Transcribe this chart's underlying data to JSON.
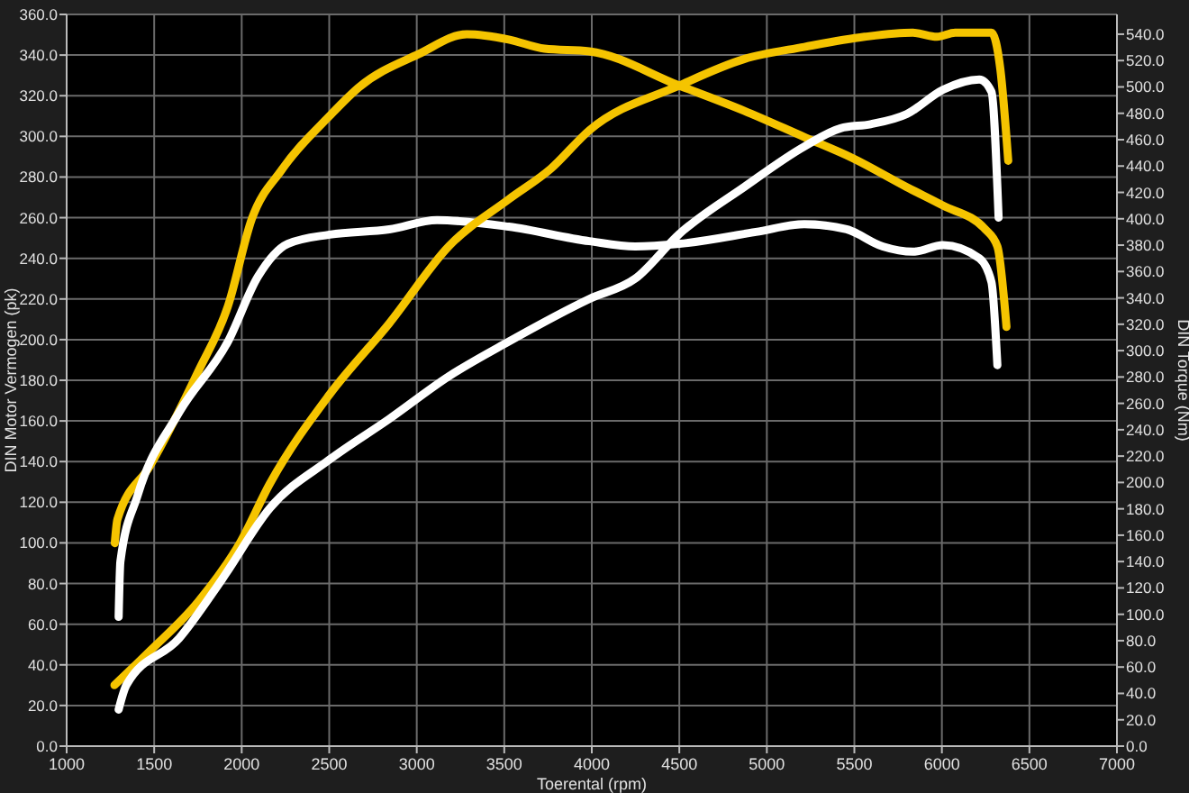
{
  "chart_data": {
    "type": "line",
    "xlabel": "Toerental (rpm)",
    "ylabel": "DIN Motor Vermogen (pk)",
    "y2label": "DIN Torque (Nm)",
    "xlim": [
      1000,
      7000
    ],
    "xticks": [
      1000,
      1500,
      2000,
      2500,
      3000,
      3500,
      4000,
      4500,
      5000,
      5500,
      6000,
      6500,
      7000
    ],
    "ylim": [
      0,
      360
    ],
    "yticks": [
      {
        "value": 0,
        "label": "0.0"
      },
      {
        "value": 20,
        "label": "20.0"
      },
      {
        "value": 40,
        "label": "40.0"
      },
      {
        "value": 60,
        "label": "60.0"
      },
      {
        "value": 80,
        "label": "80.0"
      },
      {
        "value": 100,
        "label": "100.0"
      },
      {
        "value": 120,
        "label": "120.0"
      },
      {
        "value": 140,
        "label": "140.0"
      },
      {
        "value": 160,
        "label": "160.0"
      },
      {
        "value": 180,
        "label": "180.0"
      },
      {
        "value": 200,
        "label": "200.0"
      },
      {
        "value": 220,
        "label": "220.0"
      },
      {
        "value": 240,
        "label": "240.0"
      },
      {
        "value": 260,
        "label": "260.0"
      },
      {
        "value": 280,
        "label": "280.0"
      },
      {
        "value": 300,
        "label": "300.0"
      },
      {
        "value": 320,
        "label": "320.0"
      },
      {
        "value": 340,
        "label": "340.0"
      },
      {
        "value": 360,
        "label": "360.0"
      }
    ],
    "y2lim": [
      0,
      555
    ],
    "y2ticks": [
      {
        "value": 0,
        "label": "0.0"
      },
      {
        "value": 20,
        "label": "20.0"
      },
      {
        "value": 40,
        "label": "40.0"
      },
      {
        "value": 60,
        "label": "60.0"
      },
      {
        "value": 80,
        "label": "80.0"
      },
      {
        "value": 100,
        "label": "100.0"
      },
      {
        "value": 120,
        "label": "120.0"
      },
      {
        "value": 140,
        "label": "140.0"
      },
      {
        "value": 160,
        "label": "160.0"
      },
      {
        "value": 180,
        "label": "180.0"
      },
      {
        "value": 200,
        "label": "200.0"
      },
      {
        "value": 220,
        "label": "220.0"
      },
      {
        "value": 240,
        "label": "240.0"
      },
      {
        "value": 260,
        "label": "260.0"
      },
      {
        "value": 280,
        "label": "280.0"
      },
      {
        "value": 300,
        "label": "300.0"
      },
      {
        "value": 320,
        "label": "320.0"
      },
      {
        "value": 340,
        "label": "340.0"
      },
      {
        "value": 360,
        "label": "360.0"
      },
      {
        "value": 380,
        "label": "380.0"
      },
      {
        "value": 400,
        "label": "400.0"
      },
      {
        "value": 420,
        "label": "420.0"
      },
      {
        "value": 440,
        "label": "440.0"
      },
      {
        "value": 460,
        "label": "460.0"
      },
      {
        "value": 480,
        "label": "480.0"
      },
      {
        "value": 500,
        "label": "500.0"
      },
      {
        "value": 520,
        "label": "520.0"
      },
      {
        "value": 540,
        "label": "540.0"
      }
    ],
    "grid": true,
    "marker": "none",
    "line_style": "solid",
    "series": [
      {
        "color": "#f5c400",
        "x": [
          1275,
          1290,
          1478,
          1751,
          1922,
          2058,
          2228,
          2502,
          2672,
          3012,
          3286,
          3525,
          3730,
          3986,
          4500,
          4869,
          5214,
          5490,
          5800,
          6007,
          6248,
          6317,
          6369
        ],
        "values": [
          154,
          172,
          213,
          284,
          334,
          400,
          437,
          478,
          500,
          525,
          540,
          536,
          529,
          527,
          501,
          482,
          462,
          446,
          424,
          410,
          392,
          379,
          318
        ],
        "axis": "y2"
      },
      {
        "color": "#ffffff",
        "x": [
          1297,
          1307,
          1405,
          1642,
          1922,
          2092,
          2263,
          2502,
          2843,
          3116,
          3525,
          3986,
          4248,
          4500,
          4938,
          5214,
          5455,
          5662,
          5834,
          6007,
          6214,
          6283,
          6317
        ],
        "values": [
          98,
          140,
          190,
          253,
          307,
          356,
          381,
          388,
          392,
          399,
          394,
          383,
          379,
          381,
          390,
          396,
          392,
          379,
          375,
          380,
          370,
          352,
          289
        ],
        "axis": "y2"
      },
      {
        "color": "#f5c400",
        "x": [
          1273,
          1478,
          1751,
          1990,
          2160,
          2502,
          2843,
          3184,
          3525,
          3765,
          3986,
          4500,
          4869,
          5214,
          5559,
          5834,
          5972,
          6076,
          6283,
          6334,
          6379
        ],
        "values": [
          30,
          47,
          71,
          100,
          129,
          173,
          208,
          246,
          269,
          284,
          303,
          325,
          338,
          344,
          349,
          351,
          349,
          351,
          351,
          333,
          288
        ]
      },
      {
        "color": "#ffffff",
        "x": [
          1297,
          1341,
          1642,
          1887,
          2160,
          2502,
          2843,
          3184,
          3525,
          3986,
          4248,
          4500,
          4869,
          5214,
          5421,
          5593,
          5800,
          6007,
          6214,
          6283,
          6324
        ],
        "values": [
          18,
          30,
          53,
          82,
          117,
          141,
          161,
          182,
          199,
          220,
          230,
          252,
          275,
          295,
          304,
          306,
          311,
          323,
          328,
          322,
          260
        ]
      }
    ]
  }
}
